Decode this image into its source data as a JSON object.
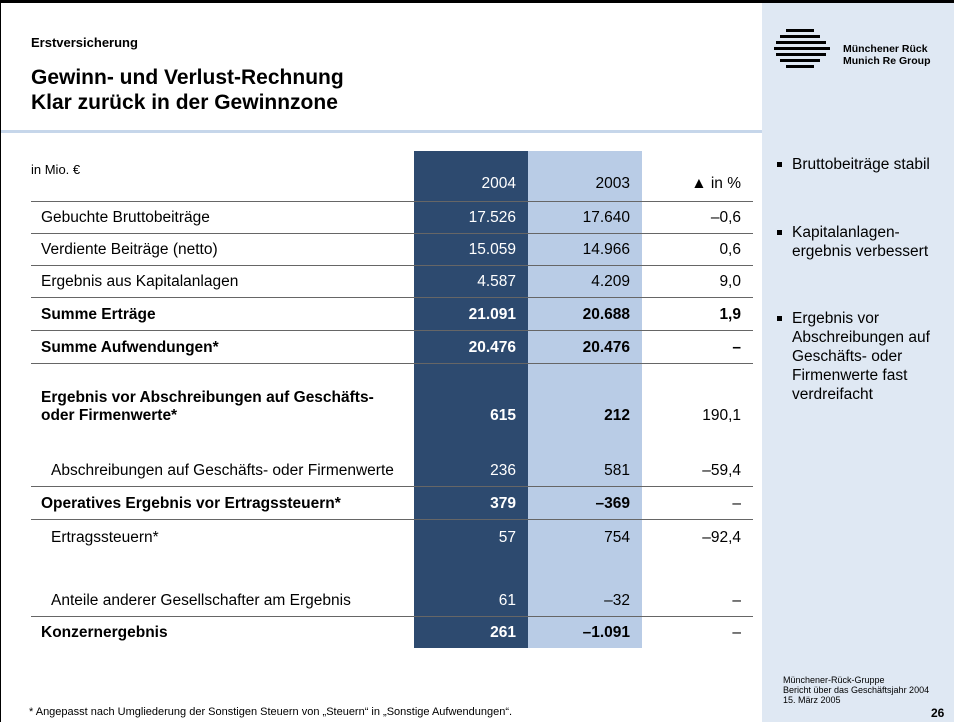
{
  "header": {
    "section": "Erstversicherung",
    "title_line1": "Gewinn- und Verlust-Rechnung",
    "title_line2": "Klar zurück in der Gewinnzone"
  },
  "logo": {
    "line1": "Münchener Rück",
    "line2": "Munich Re Group"
  },
  "table": {
    "unit": "in Mio. €",
    "columns": [
      "2004",
      "2003",
      "▲ in %"
    ],
    "rows": [
      [
        "Gebuchte Bruttobeiträge",
        "17.526",
        "17.640",
        "–0,6"
      ],
      [
        "Verdiente Beiträge (netto)",
        "15.059",
        "14.966",
        "0,6"
      ],
      [
        "Ergebnis aus Kapitalanlagen",
        "4.587",
        "4.209",
        "9,0"
      ],
      [
        "Summe Erträge",
        "21.091",
        "20.688",
        "1,9"
      ],
      [
        "Summe Aufwendungen*",
        "20.476",
        "20.476",
        "–"
      ],
      [
        "Ergebnis vor Abschreibungen auf Geschäfts- oder Firmenwerte*",
        "615",
        "212",
        "190,1"
      ],
      [
        "Abschreibungen auf Geschäfts- oder Firmenwerte",
        "236",
        "581",
        "–59,4"
      ],
      [
        "Operatives Ergebnis vor Ertragssteuern*",
        "379",
        "–369",
        "–"
      ],
      [
        "Ertragssteuern*",
        "57",
        "754",
        "–92,4"
      ],
      [
        "Anteile anderer Gesellschafter am Ergebnis",
        "61",
        "–32",
        "–"
      ],
      [
        "Konzernergebnis",
        "261",
        "–1.091",
        "–"
      ]
    ]
  },
  "bullets": [
    "Bruttobeiträge stabil",
    "Kapitalanlagen-ergebnis verbessert",
    "Ergebnis vor Abschreibungen auf Geschäfts- oder Firmenwerte fast verdreifacht"
  ],
  "footnote": "* Angepasst nach Umgliederung der Sonstigen Steuern von „Steuern“ in „Sonstige Aufwendungen“.",
  "footer": {
    "line1": "Münchener-Rück-Gruppe",
    "line2": "Bericht über das Geschäftsjahr 2004",
    "line3": "15. März 2005",
    "page": "26"
  }
}
